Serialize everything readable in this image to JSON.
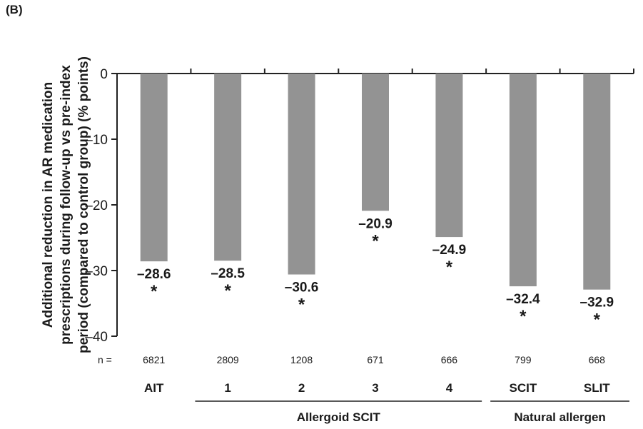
{
  "panel_label": "(B)",
  "chart_data": {
    "type": "bar",
    "ylabel_lines": [
      "Additional reduction in AR medication",
      "prescriptions during follow-up vs pre-index",
      "period (compared to control group) (% points)"
    ],
    "ylim": [
      -40,
      0
    ],
    "yticks": [
      0,
      -10,
      -20,
      -30,
      -40
    ],
    "ytick_labels": [
      "0",
      "–10",
      "–20",
      "–30",
      "–40"
    ],
    "categories": [
      "AIT",
      "1",
      "2",
      "3",
      "4",
      "SCIT",
      "SLIT"
    ],
    "values": [
      -28.6,
      -28.5,
      -30.6,
      -20.9,
      -24.9,
      -32.4,
      -32.9
    ],
    "value_labels": [
      "–28.6",
      "–28.5",
      "–30.6",
      "–20.9",
      "–24.9",
      "–32.4",
      "–32.9"
    ],
    "significance": [
      "*",
      "*",
      "*",
      "*",
      "*",
      "*",
      "*"
    ],
    "n_label": "n  =",
    "n_values": [
      "6821",
      "2809",
      "1208",
      "671",
      "666",
      "799",
      "668"
    ],
    "groups": [
      {
        "label": "Allergoid SCIT",
        "from": 1,
        "to": 4
      },
      {
        "label": "Natural allergen",
        "from": 5,
        "to": 6
      }
    ],
    "bar_color": "#939393",
    "grid": false
  }
}
